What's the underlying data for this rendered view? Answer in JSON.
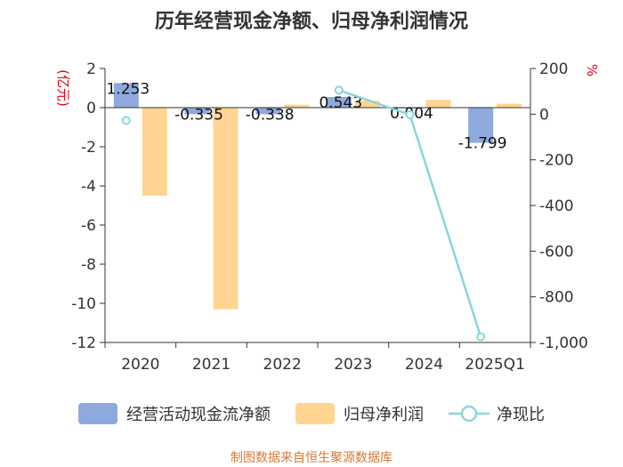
{
  "title": "历年经营现金净额、归母净利润情况",
  "source": "制图数据来自恒生聚源数据库",
  "colors": {
    "cash": "#8eaadc",
    "profit": "#ffd591",
    "ratio": "#89d6dc"
  },
  "chart_data": {
    "type": "bar",
    "title": "历年经营现金净额、归母净利润情况",
    "categories": [
      "2020",
      "2021",
      "2022",
      "2023",
      "2024",
      "2025Q1"
    ],
    "left_axis": {
      "unit": "(亿元)",
      "ylim": [
        -12,
        2
      ],
      "ticks": [
        "2",
        "0",
        "-2",
        "-4",
        "-6",
        "-8",
        "-10",
        "-12"
      ]
    },
    "right_axis": {
      "unit": "%",
      "ylim": [
        -1000,
        200
      ],
      "ticks": [
        "200",
        "0",
        "-200",
        "-400",
        "-600",
        "-800",
        "-1,000"
      ]
    },
    "series": [
      {
        "name": "经营活动现金流净额",
        "axis": "left",
        "values": [
          1.253,
          -0.335,
          -0.338,
          0.543,
          0.004,
          -1.799
        ],
        "labels": [
          "1.253",
          "-0.335",
          "-0.338",
          "0.543",
          "0.004",
          "-1.799"
        ]
      },
      {
        "name": "归母净利润",
        "axis": "left",
        "values": [
          -4.5,
          -10.3,
          0.15,
          0.35,
          0.4,
          0.2
        ]
      },
      {
        "name": "净现比",
        "axis": "right",
        "type": "line",
        "values": [
          -28,
          null,
          null,
          105,
          -2,
          -975
        ]
      }
    ],
    "legend": [
      "经营活动现金流净额",
      "归母净利润",
      "净现比"
    ],
    "legend_position": "bottom"
  }
}
